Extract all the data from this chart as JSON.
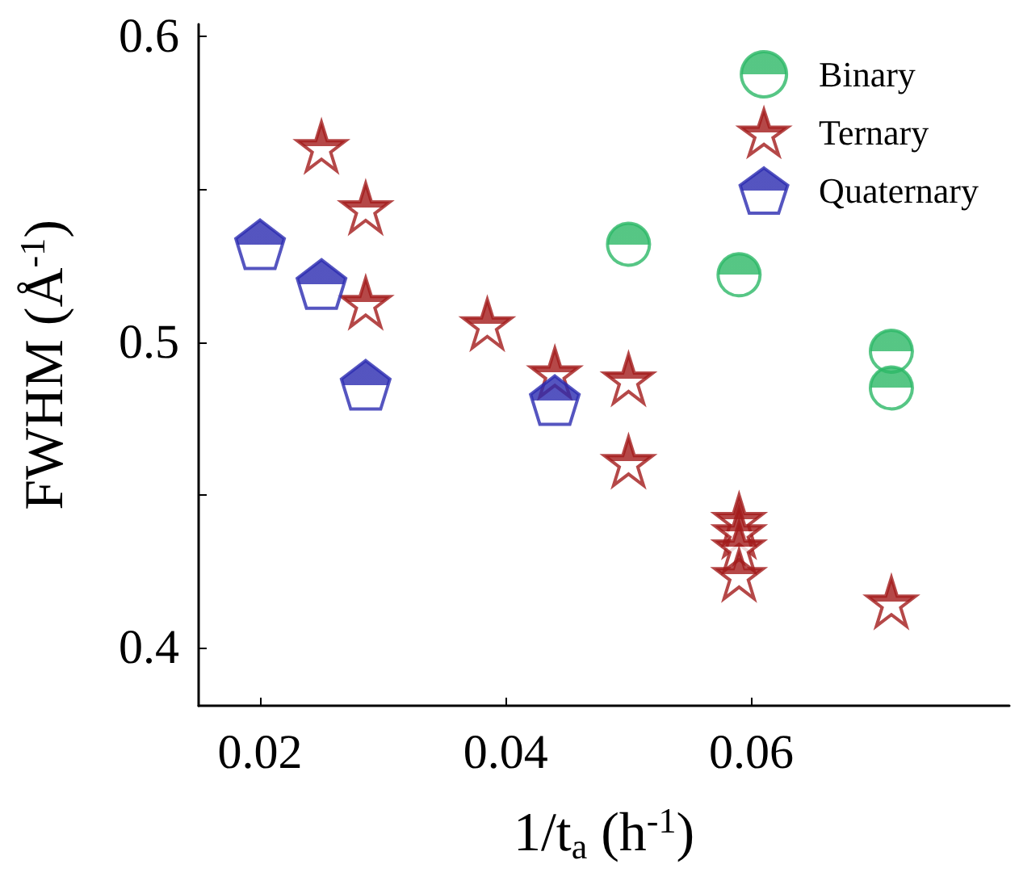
{
  "chart_data": {
    "type": "scatter",
    "xlabel": "1/t$_{a}$ (h$^{-1}$)",
    "ylabel": "FWHM (Å$^{-1}$)",
    "xlim": [
      0.015,
      0.081
    ],
    "ylim": [
      0.381,
      0.604
    ],
    "xticks": [
      0.02,
      0.04,
      0.06
    ],
    "yticks": [
      0.4,
      {
        "value": 0.45,
        "label": null
      },
      0.5,
      {
        "value": 0.55,
        "label": null
      },
      0.6
    ],
    "legend": "top right",
    "grid": false,
    "series": [
      {
        "name": "Binary",
        "color": "#2cb866",
        "marker": "circle",
        "x": [
          0.05,
          0.059,
          0.0714,
          0.0714
        ],
        "values": [
          0.532,
          0.522,
          0.497,
          0.485
        ]
      },
      {
        "name": "Ternary",
        "color": "#a31a1a",
        "marker": "star",
        "x": [
          0.025,
          0.0286,
          0.0286,
          0.0385,
          0.044,
          0.05,
          0.05,
          0.059,
          0.059,
          0.059,
          0.059,
          0.0714
        ],
        "values": [
          0.564,
          0.544,
          0.513,
          0.506,
          0.49,
          0.488,
          0.461,
          0.442,
          0.438,
          0.433,
          0.424,
          0.415
        ]
      },
      {
        "name": "Quaternary",
        "color": "#2a2ab0",
        "x": [
          0.02,
          0.025,
          0.0286,
          0.044
        ],
        "values": [
          0.532,
          0.519,
          0.486,
          0.481
        ]
      }
    ]
  }
}
